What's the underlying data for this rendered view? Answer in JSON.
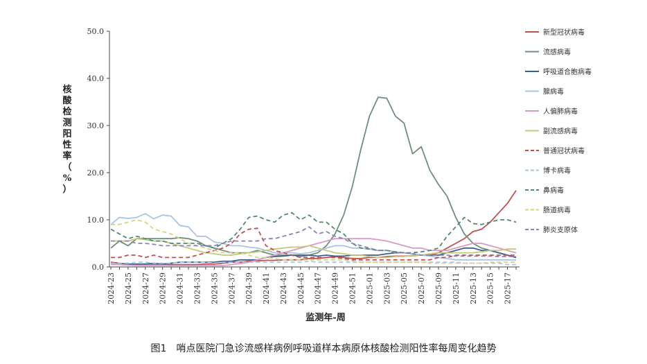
{
  "caption": "图1　哨点医院门急诊流感样病例呼吸道样本病原体核酸检测阳性率每周变化趋势",
  "chart_data": {
    "type": "line",
    "title": "",
    "xlabel": "监测年-周",
    "ylabel": "核酸检测阳性率（%）",
    "ylim": [
      0,
      50
    ],
    "yticks": [
      "0.0",
      "10.0",
      "20.0",
      "30.0",
      "40.0",
      "50.0"
    ],
    "grid": false,
    "legend_position": "right",
    "x": [
      "2024-23",
      "2024-24",
      "2024-25",
      "2024-26",
      "2024-27",
      "2024-28",
      "2024-29",
      "2024-30",
      "2024-31",
      "2024-32",
      "2024-33",
      "2024-34",
      "2024-35",
      "2024-36",
      "2024-37",
      "2024-38",
      "2024-39",
      "2024-40",
      "2024-41",
      "2024-42",
      "2024-43",
      "2024-44",
      "2024-45",
      "2024-46",
      "2024-47",
      "2024-48",
      "2024-49",
      "2024-50",
      "2024-51",
      "2024-52",
      "2025-01",
      "2025-02",
      "2025-03",
      "2025-04",
      "2025-05",
      "2025-06",
      "2025-07",
      "2025-08",
      "2025-09",
      "2025-10",
      "2025-11",
      "2025-12",
      "2025-13",
      "2025-14",
      "2025-15",
      "2025-16",
      "2025-17",
      "2025-18"
    ],
    "x_tick_labels": [
      "2024-23",
      "2024-25",
      "2024-27",
      "2024-29",
      "2024-31",
      "2024-33",
      "2024-35",
      "2024-37",
      "2024-39",
      "2024-41",
      "2024-43",
      "2024-45",
      "2024-47",
      "2024-49",
      "2024-51",
      "2025-01",
      "2025-03",
      "2025-05",
      "2025-07",
      "2025-09",
      "2025-11",
      "2025-13",
      "2025-15",
      "2025-17"
    ],
    "series": [
      {
        "name": "新型冠状病毒",
        "color": "#c0504d",
        "dash": "solid",
        "values": [
          1,
          0.8,
          0.6,
          0.6,
          0.6,
          0.8,
          0.6,
          0.5,
          0.5,
          0.5,
          0.5,
          0.6,
          0.6,
          0.8,
          1,
          1,
          1.2,
          1.3,
          1.4,
          1.4,
          1.5,
          1.5,
          1.5,
          1.8,
          1.8,
          2,
          2.2,
          2,
          1.8,
          1.8,
          2,
          2,
          2.2,
          2.3,
          2.3,
          2.4,
          2.5,
          2.4,
          3,
          4,
          5,
          6,
          7.5,
          8,
          9.5,
          11.5,
          13.5,
          16.2
        ]
      },
      {
        "name": "流感病毒",
        "color": "#6f8f78",
        "dash": "solid",
        "values": [
          4,
          5.5,
          4.5,
          6,
          6,
          6,
          6,
          6,
          6.2,
          6,
          5.5,
          4.5,
          4,
          3.5,
          3,
          3,
          3,
          3.5,
          3,
          2.5,
          2.5,
          2.5,
          2.2,
          2.5,
          3,
          4.5,
          7,
          11,
          17,
          25,
          32,
          36,
          35.8,
          32,
          30.5,
          24,
          25.5,
          20.5,
          17.5,
          15,
          10.5,
          7,
          5,
          4,
          3.5,
          3,
          2.5,
          2
        ]
      },
      {
        "name": "呼吸道合胞病毒",
        "color": "#3a5f8e",
        "dash": "solid",
        "values": [
          0.5,
          0.5,
          0.6,
          0.6,
          0.6,
          0.6,
          0.6,
          0.8,
          1,
          1,
          1,
          1,
          1,
          1.2,
          1.2,
          1.5,
          1.5,
          1.5,
          2,
          2.2,
          2.3,
          2.5,
          2.5,
          2.5,
          2.3,
          2.5,
          2.3,
          2.3,
          2.5,
          2.5,
          2.5,
          2.5,
          2.8,
          3,
          3,
          2.8,
          2.5,
          2.5,
          2.5,
          3,
          3.5,
          4,
          4,
          3.5,
          3.5,
          3,
          2.5,
          2
        ]
      },
      {
        "name": "腺病毒",
        "color": "#a8c4e2",
        "dash": "solid",
        "values": [
          9,
          10.5,
          10.3,
          10.5,
          11.3,
          10.2,
          11,
          10.8,
          8.8,
          8.5,
          6.5,
          6.5,
          5.3,
          5,
          4.5,
          4.5,
          4.2,
          4,
          3.5,
          3,
          3,
          3,
          2.8,
          3,
          3.5,
          4,
          4.5,
          4.5,
          4,
          4,
          3.8,
          3.5,
          3.5,
          3.2,
          3,
          2.8,
          2.5,
          2.3,
          2,
          1.8,
          1.5,
          1.5,
          1.5,
          1.5,
          1.5,
          1.5,
          1.5,
          1.5
        ]
      },
      {
        "name": "人偏肺病毒",
        "color": "#d99ac3",
        "dash": "solid",
        "values": [
          0.5,
          0.5,
          0.4,
          0.3,
          0.3,
          0.3,
          0.3,
          0.3,
          0.3,
          0.3,
          0.3,
          0.3,
          0.3,
          0.3,
          0.5,
          0.7,
          1,
          1.5,
          2,
          2.5,
          3,
          3.5,
          4,
          4.5,
          5,
          5.5,
          6,
          6,
          6,
          6,
          6,
          5.8,
          5.5,
          5,
          4.5,
          4,
          4,
          3.5,
          3.5,
          3.5,
          4,
          4.5,
          5,
          5,
          4.5,
          4,
          3.5,
          3
        ]
      },
      {
        "name": "副流感病毒",
        "color": "#c4c87a",
        "dash": "solid",
        "values": [
          5.5,
          5.5,
          5.5,
          6,
          5.8,
          5.5,
          5.5,
          5,
          4.5,
          4,
          3.5,
          3,
          2.8,
          2.5,
          2.5,
          2.8,
          3,
          3.2,
          3.5,
          3.8,
          4,
          4.2,
          4.2,
          4.5,
          4,
          3.5,
          3,
          2.8,
          2.5,
          2.5,
          2.2,
          2,
          2,
          2.2,
          2.2,
          2.5,
          2.5,
          2.8,
          3,
          3,
          3,
          3,
          3,
          3.2,
          3.5,
          3.5,
          3.8,
          3.8
        ]
      },
      {
        "name": "普通冠状病毒",
        "color": "#c0504d",
        "dash": "dash",
        "values": [
          2,
          2,
          2.5,
          2.5,
          2,
          2.5,
          2,
          2,
          2,
          2,
          2.5,
          3,
          3.5,
          4,
          5,
          7,
          8,
          8.2,
          4.5,
          3.5,
          3,
          2.5,
          2,
          2,
          2,
          2,
          2,
          1.8,
          1.5,
          1.5,
          1.5,
          1.5,
          1.5,
          1.5,
          1.5,
          1.5,
          1.5,
          1.5,
          2,
          2,
          2.5,
          2.5,
          2.5,
          2.5,
          2.5,
          2.5,
          2.5,
          2.5
        ]
      },
      {
        "name": "博卡病毒",
        "color": "#a8c4e2",
        "dash": "dash",
        "values": [
          0.8,
          0.8,
          0.8,
          1,
          1,
          0.8,
          0.8,
          0.8,
          1,
          1,
          1,
          1,
          0.8,
          1,
          1,
          1,
          1,
          1,
          1,
          1,
          1,
          1,
          1,
          1.2,
          1,
          1,
          1,
          1,
          1,
          1,
          1,
          1,
          1,
          1,
          1,
          1,
          1,
          1,
          1,
          1,
          1,
          0.8,
          0.8,
          0.8,
          0.8,
          0.8,
          0.5,
          0.5
        ]
      },
      {
        "name": "鼻病毒",
        "color": "#4f8a6e",
        "dash": "dash",
        "values": [
          8,
          7,
          6,
          6.5,
          6,
          5.5,
          5.5,
          5,
          5,
          5,
          5,
          4.5,
          4,
          5,
          6,
          8,
          10.5,
          10.8,
          10,
          9.5,
          11,
          11.5,
          10,
          11,
          9.5,
          9.5,
          8,
          7,
          5,
          4,
          3.8,
          3.5,
          3.5,
          3.2,
          3,
          3,
          3.2,
          3.5,
          4,
          6.5,
          8.5,
          10.5,
          9.2,
          9,
          9.5,
          10,
          10,
          9.5
        ]
      },
      {
        "name": "肠道病毒",
        "color": "#d8d28a",
        "dash": "dash",
        "values": [
          9,
          9,
          9.5,
          10,
          9.5,
          8,
          7.5,
          7,
          6,
          5,
          4.5,
          4,
          3.5,
          3,
          3,
          3,
          2.5,
          2,
          2,
          1.8,
          1.5,
          1.5,
          1.5,
          1.5,
          1.5,
          1.5,
          1.5,
          1.5,
          1.2,
          1,
          1,
          1,
          1,
          1,
          1,
          1,
          1,
          0.8,
          0.8,
          0.8,
          0.8,
          0.8,
          0.8,
          0.8,
          1,
          1,
          1,
          1
        ]
      },
      {
        "name": "肺炎支原体",
        "color": "#8a82b8",
        "dash": "dash",
        "values": [
          5.5,
          5.5,
          5.5,
          5,
          5,
          4.8,
          4.5,
          4.5,
          4.5,
          4.5,
          4.5,
          4.5,
          4.5,
          5,
          5.5,
          5.5,
          5.5,
          5.5,
          6,
          6,
          6.5,
          7,
          7.5,
          8.5,
          7,
          7.5,
          6.5,
          6,
          5,
          4.5,
          4,
          3.5,
          3.5,
          3,
          3,
          2.8,
          2.5,
          2.5,
          2.5,
          2.5,
          2.3,
          2.3,
          2.3,
          2.3,
          2.3,
          2.2,
          2.2,
          2.2
        ]
      }
    ]
  }
}
